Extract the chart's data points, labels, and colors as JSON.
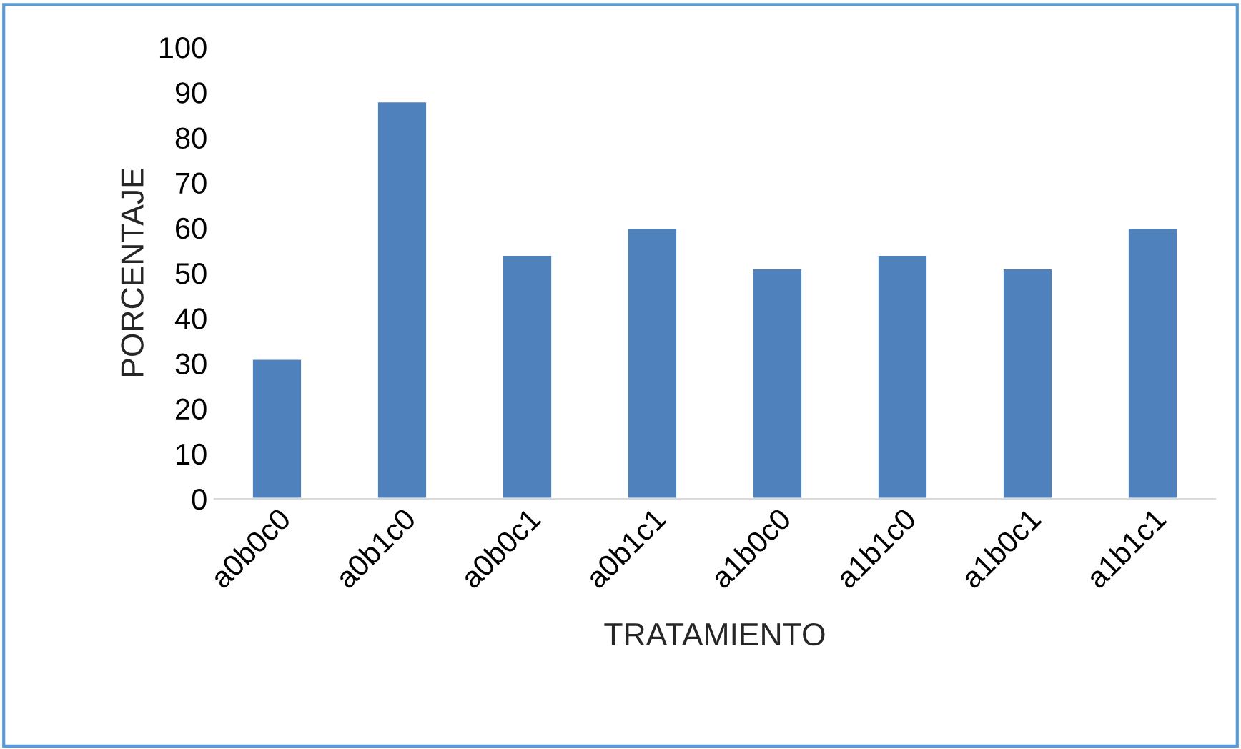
{
  "chart_data": {
    "type": "bar",
    "xlabel": "TRATAMIENTO",
    "ylabel": "PORCENTAJE",
    "categories": [
      "a0b0c0",
      "a0b1c0",
      "a0b0c1",
      "a0b1c1",
      "a1b0c0",
      "a1b1c0",
      "a1b0c1",
      "a1b1c1"
    ],
    "values": [
      31,
      88,
      54,
      60,
      51,
      54,
      51,
      60
    ],
    "color": "#4f81bd",
    "ylim": [
      0,
      100
    ],
    "yticks": [
      0,
      10,
      20,
      30,
      40,
      50,
      60,
      70,
      80,
      90,
      100
    ],
    "grid": false,
    "legend": false
  }
}
